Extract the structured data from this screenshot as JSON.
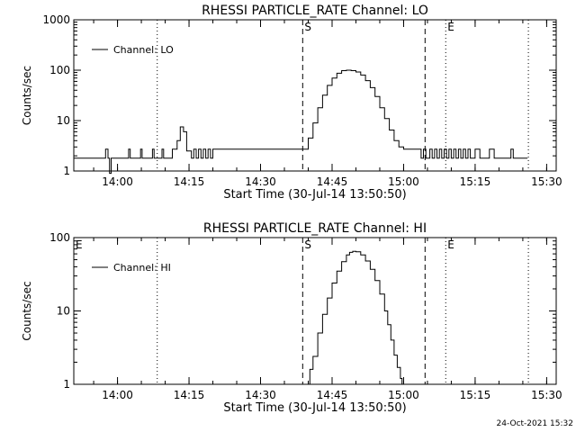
{
  "footer": {
    "timestamp": "24-Oct-2021 15:32"
  },
  "chart_data": [
    {
      "type": "line",
      "title": "RHESSI PARTICLE_RATE Channel: LO",
      "xlabel": "Start Time (30-Jul-14 13:50:50)",
      "ylabel": "Counts/sec",
      "y_scale": "log",
      "ylim": [
        1,
        1000
      ],
      "xlim": [
        "13:50:50",
        "15:32:00"
      ],
      "x_ticks": [
        "14:00",
        "14:15",
        "14:30",
        "14:45",
        "15:00",
        "15:15",
        "15:30"
      ],
      "y_ticks": [
        "1",
        "10",
        "100",
        "1000"
      ],
      "legend": {
        "position": "top-left",
        "entries": [
          "Channel: LO"
        ]
      },
      "markers": [
        {
          "time": "14:08:20",
          "style": "dotted",
          "label": ""
        },
        {
          "time": "14:38:50",
          "style": "dashed",
          "label": "S"
        },
        {
          "time": "15:04:30",
          "style": "dashed",
          "label": ""
        },
        {
          "time": "15:08:50",
          "style": "dotted",
          "label": "E"
        },
        {
          "time": "15:26:10",
          "style": "dotted",
          "label": ""
        }
      ],
      "series": [
        {
          "name": "Channel: LO",
          "x": [
            "13:50:50",
            "13:57:00",
            "13:57:30",
            "13:58:00",
            "13:58:20",
            "13:58:40",
            "13:59:00",
            "14:02:00",
            "14:02:20",
            "14:02:40",
            "14:04:30",
            "14:04:50",
            "14:05:10",
            "14:07:00",
            "14:07:20",
            "14:07:40",
            "14:09:00",
            "14:09:20",
            "14:09:40",
            "14:10:40",
            "14:11:30",
            "14:12:30",
            "14:13:10",
            "14:13:50",
            "14:14:30",
            "14:15:30",
            "14:16:00",
            "14:16:30",
            "14:17:00",
            "14:17:30",
            "14:18:00",
            "14:18:30",
            "14:19:00",
            "14:19:30",
            "14:20:00",
            "14:21:00",
            "14:22:00",
            "14:23:00",
            "14:24:00",
            "14:25:00",
            "14:26:00",
            "14:27:00",
            "14:28:00",
            "14:29:00",
            "14:30:00",
            "14:31:00",
            "14:32:00",
            "14:33:00",
            "14:34:00",
            "14:35:00",
            "14:36:00",
            "14:37:00",
            "14:38:00",
            "14:39:00",
            "14:40:00",
            "14:41:00",
            "14:42:00",
            "14:43:00",
            "14:44:00",
            "14:45:00",
            "14:46:00",
            "14:47:00",
            "14:48:00",
            "14:49:00",
            "14:50:00",
            "14:51:00",
            "14:52:00",
            "14:53:00",
            "14:54:00",
            "14:55:00",
            "14:56:00",
            "14:57:00",
            "14:58:00",
            "14:59:00",
            "15:00:00",
            "15:01:00",
            "15:02:00",
            "15:03:00",
            "15:03:40",
            "15:04:10",
            "15:04:40",
            "15:05:30",
            "15:06:00",
            "15:06:30",
            "15:07:00",
            "15:07:30",
            "15:08:00",
            "15:08:30",
            "15:09:00",
            "15:09:30",
            "15:10:00",
            "15:10:30",
            "15:11:00",
            "15:11:30",
            "15:12:00",
            "15:12:30",
            "15:13:00",
            "15:13:30",
            "15:14:00",
            "15:15:00",
            "15:16:00",
            "15:17:00",
            "15:18:00",
            "15:19:00",
            "15:20:00",
            "15:21:00",
            "15:22:00",
            "15:22:30",
            "15:23:00",
            "15:24:00",
            "15:25:00",
            "15:26:00"
          ],
          "y": [
            1.8,
            1.8,
            2.7,
            1.8,
            0.9,
            1.8,
            1.8,
            1.8,
            2.7,
            1.8,
            1.8,
            2.7,
            1.8,
            1.8,
            2.7,
            1.8,
            1.8,
            2.7,
            1.8,
            1.8,
            2.7,
            4.0,
            7.5,
            6.0,
            2.5,
            1.8,
            2.7,
            1.8,
            2.7,
            1.8,
            2.7,
            1.8,
            2.7,
            1.8,
            2.7,
            2.7,
            2.7,
            2.7,
            2.7,
            2.7,
            2.7,
            2.7,
            2.7,
            2.7,
            2.7,
            2.7,
            2.7,
            2.7,
            2.7,
            2.7,
            2.7,
            2.7,
            2.7,
            2.7,
            4.5,
            9,
            18,
            32,
            50,
            70,
            87,
            98,
            100,
            98,
            92,
            80,
            62,
            45,
            30,
            18,
            11,
            6.5,
            4.0,
            3.0,
            2.7,
            2.7,
            2.7,
            2.7,
            1.8,
            2.7,
            1.8,
            2.7,
            1.8,
            2.7,
            1.8,
            2.7,
            1.8,
            2.7,
            1.8,
            2.7,
            1.8,
            2.7,
            1.8,
            2.7,
            1.8,
            2.7,
            1.8,
            2.7,
            1.8,
            2.7,
            1.8,
            1.8,
            2.7,
            1.8,
            1.8,
            1.8,
            1.8,
            2.7,
            1.8,
            1.8,
            1.8,
            1.8
          ]
        }
      ]
    },
    {
      "type": "line",
      "title": "RHESSI PARTICLE_RATE Channel: HI",
      "xlabel": "Start Time (30-Jul-14 13:50:50)",
      "ylabel": "Counts/sec",
      "y_scale": "log",
      "ylim": [
        1,
        100
      ],
      "xlim": [
        "13:50:50",
        "15:32:00"
      ],
      "x_ticks": [
        "14:00",
        "14:15",
        "14:30",
        "14:45",
        "15:00",
        "15:15",
        "15:30"
      ],
      "y_ticks": [
        "1",
        "10",
        "100"
      ],
      "legend": {
        "position": "top-left",
        "entries": [
          "Channel: HI"
        ]
      },
      "markers": [
        {
          "time": "13:50:50",
          "style": "none",
          "label": "E"
        },
        {
          "time": "14:08:20",
          "style": "dotted",
          "label": ""
        },
        {
          "time": "14:38:50",
          "style": "dashed",
          "label": "S"
        },
        {
          "time": "15:04:30",
          "style": "dashed",
          "label": ""
        },
        {
          "time": "15:08:50",
          "style": "dotted",
          "label": "E"
        },
        {
          "time": "15:26:10",
          "style": "dotted",
          "label": ""
        }
      ],
      "series": [
        {
          "name": "Channel: HI",
          "x": [
            "14:39:40",
            "14:40:20",
            "14:41:00",
            "14:42:00",
            "14:43:00",
            "14:44:00",
            "14:45:00",
            "14:46:00",
            "14:47:00",
            "14:48:00",
            "14:48:40",
            "14:49:20",
            "14:50:00",
            "14:51:00",
            "14:52:00",
            "14:53:00",
            "14:54:00",
            "14:55:00",
            "14:56:00",
            "14:56:40",
            "14:57:20",
            "14:58:00",
            "14:58:40",
            "14:59:20",
            "14:59:40"
          ],
          "y": [
            1,
            1.6,
            2.4,
            5,
            9,
            15,
            24,
            35,
            47,
            58,
            63,
            65,
            64,
            58,
            48,
            37,
            26,
            17,
            10,
            6.5,
            4.0,
            2.5,
            1.7,
            1.2,
            1
          ]
        }
      ]
    }
  ]
}
